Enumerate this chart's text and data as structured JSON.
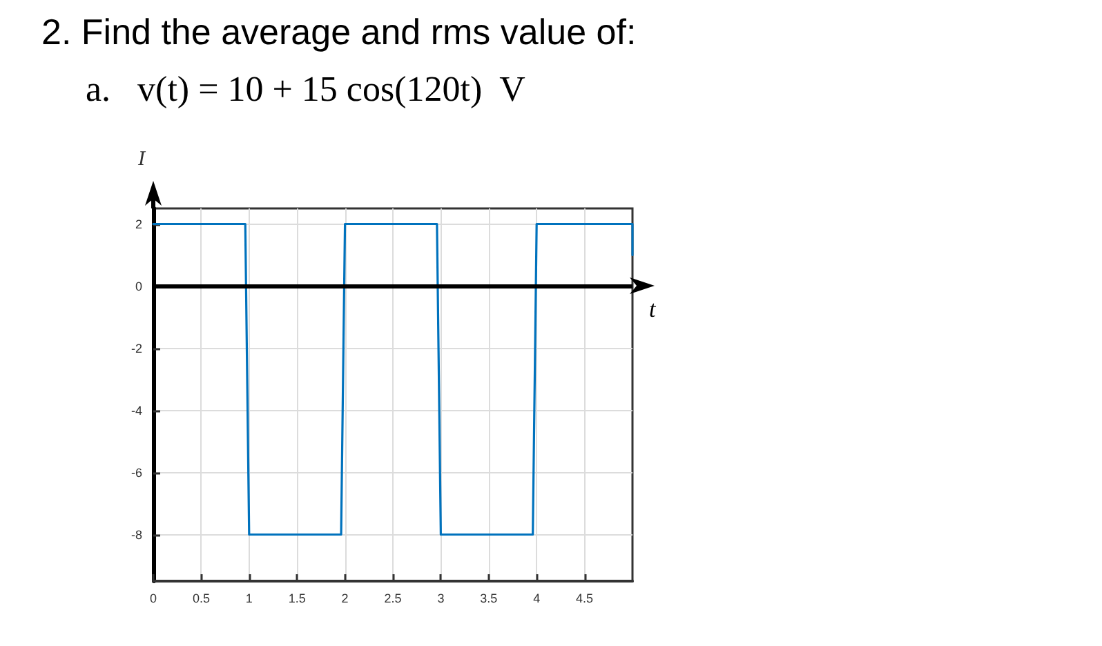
{
  "chart_data": {
    "type": "line",
    "title": "2.  Find the average and rms value of:",
    "subtitle": "a.   v(t) = 10 + 15 cos(120t)  V",
    "xlabel": "t",
    "ylabel": "I",
    "series": [
      {
        "color": "#0072bd",
        "x": [
          0,
          0.96,
          1.0,
          1.96,
          2.0,
          2.96,
          3.0,
          3.96,
          4.0,
          5.0,
          5.0
        ],
        "values": [
          2,
          2,
          -8,
          -8,
          2,
          2,
          -8,
          -8,
          2,
          2,
          1
        ]
      }
    ],
    "xlim": [
      0,
      5
    ],
    "xticks": [
      0,
      0.5,
      1,
      1.5,
      2,
      2.5,
      3,
      3.5,
      4,
      4.5
    ],
    "ylim": [
      -9.5,
      2.5
    ],
    "yticks": [
      -8,
      -6,
      -4,
      -2,
      0,
      2
    ],
    "ref_lines": [
      {
        "axis": "y",
        "value": 0,
        "color": "#000000"
      }
    ],
    "grid": true,
    "marker": "none",
    "line_style": "solid"
  }
}
